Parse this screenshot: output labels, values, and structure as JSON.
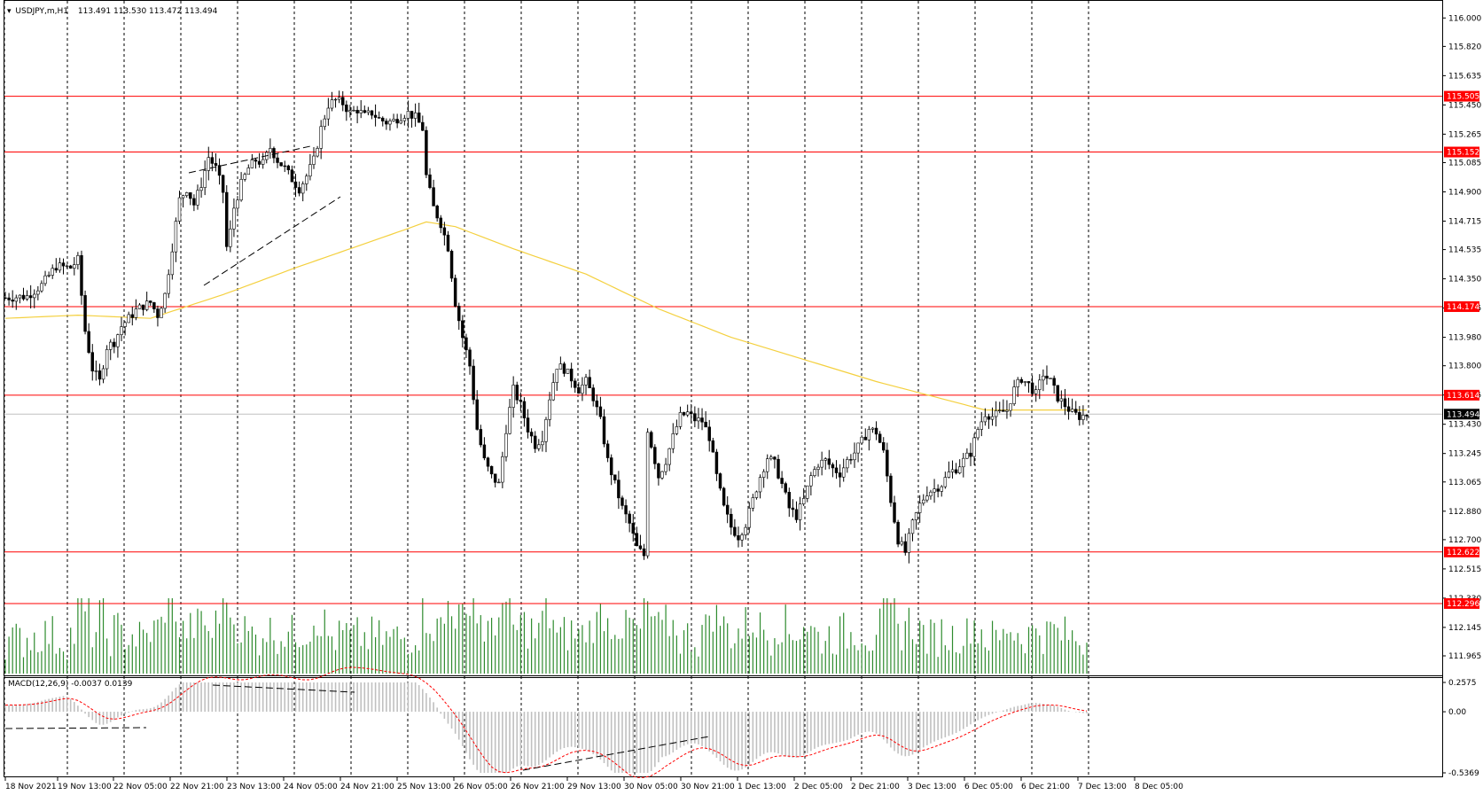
{
  "header": {
    "symbol_label": "USDJPY,m,H1",
    "ohlc": "113.491 113.530 113.472 113.494"
  },
  "macd": {
    "label": "MACD(12,26,9) -0.0037 0.0139",
    "scale": [
      "0.2575",
      "0.00",
      "-0.5369"
    ]
  },
  "colors": {
    "level_line": "#ff0000",
    "ma_line": "#ffd700",
    "volume": "#2e8b2e",
    "candle": "#000000",
    "macd_hist": "#c0c0c0",
    "macd_signal": "#ff0000",
    "current_price_bg": "#000000"
  },
  "chart_data": {
    "type": "candlestick",
    "timeframe": "H1",
    "ylim": [
      111.965,
      116.08
    ],
    "price_axis_ticks": [
      "116.000",
      "115.820",
      "115.635",
      "115.450",
      "115.265",
      "115.085",
      "114.900",
      "114.715",
      "114.535",
      "114.350",
      "114.165",
      "113.980",
      "113.800",
      "113.615",
      "113.430",
      "113.245",
      "113.065",
      "112.880",
      "112.700",
      "112.515",
      "112.330",
      "112.145",
      "111.965"
    ],
    "x_ticks": [
      "18 Nov 2021",
      "19 Nov 13:00",
      "22 Nov 05:00",
      "22 Nov 21:00",
      "23 Nov 13:00",
      "24 Nov 05:00",
      "24 Nov 21:00",
      "25 Nov 13:00",
      "26 Nov 05:00",
      "26 Nov 21:00",
      "29 Nov 13:00",
      "30 Nov 05:00",
      "30 Nov 21:00",
      "1 Dec 13:00",
      "2 Dec 05:00",
      "2 Dec 21:00",
      "3 Dec 13:00",
      "6 Dec 05:00",
      "6 Dec 21:00",
      "7 Dec 13:00",
      "8 Dec 05:00"
    ],
    "horizontal_levels": [
      {
        "value": 115.505,
        "label": "115.505"
      },
      {
        "value": 115.152,
        "label": "115.152"
      },
      {
        "value": 114.174,
        "label": "114.174"
      },
      {
        "value": 113.614,
        "label": "113.614"
      },
      {
        "value": 112.622,
        "label": "112.622"
      },
      {
        "value": 112.296,
        "label": "112.296"
      }
    ],
    "current_price": {
      "value": 113.494,
      "label": "113.494"
    },
    "price_path": [
      [
        0,
        114.23
      ],
      [
        6,
        114.24
      ],
      [
        10,
        114.31
      ],
      [
        14,
        114.43
      ],
      [
        18,
        114.42
      ],
      [
        20,
        114.47
      ],
      [
        22,
        114.02
      ],
      [
        24,
        113.78
      ],
      [
        26,
        113.7
      ],
      [
        28,
        113.92
      ],
      [
        30,
        113.95
      ],
      [
        32,
        114.05
      ],
      [
        34,
        114.1
      ],
      [
        36,
        114.15
      ],
      [
        38,
        114.18
      ],
      [
        40,
        114.2
      ],
      [
        42,
        114.12
      ],
      [
        44,
        114.25
      ],
      [
        46,
        114.55
      ],
      [
        48,
        114.85
      ],
      [
        50,
        114.92
      ],
      [
        52,
        114.82
      ],
      [
        54,
        114.95
      ],
      [
        56,
        115.12
      ],
      [
        58,
        115.05
      ],
      [
        60,
        114.9
      ],
      [
        61,
        114.55
      ],
      [
        62,
        114.65
      ],
      [
        63,
        114.8
      ],
      [
        65,
        114.95
      ],
      [
        67,
        115.05
      ],
      [
        69,
        115.1
      ],
      [
        71,
        115.08
      ],
      [
        73,
        115.18
      ],
      [
        75,
        115.1
      ],
      [
        77,
        115.05
      ],
      [
        79,
        114.98
      ],
      [
        81,
        114.92
      ],
      [
        83,
        115.0
      ],
      [
        85,
        115.1
      ],
      [
        87,
        115.3
      ],
      [
        89,
        115.45
      ],
      [
        91,
        115.48
      ],
      [
        93,
        115.46
      ],
      [
        95,
        115.4
      ],
      [
        97,
        115.42
      ],
      [
        99,
        115.38
      ],
      [
        101,
        115.4
      ],
      [
        103,
        115.36
      ],
      [
        105,
        115.34
      ],
      [
        107,
        115.35
      ],
      [
        109,
        115.38
      ],
      [
        111,
        115.4
      ],
      [
        113,
        115.37
      ],
      [
        115,
        115.3
      ],
      [
        116,
        115.0
      ],
      [
        118,
        114.8
      ],
      [
        120,
        114.7
      ],
      [
        122,
        114.55
      ],
      [
        124,
        114.2
      ],
      [
        126,
        113.98
      ],
      [
        128,
        113.8
      ],
      [
        130,
        113.4
      ],
      [
        132,
        113.2
      ],
      [
        134,
        113.1
      ],
      [
        136,
        113.05
      ],
      [
        138,
        113.4
      ],
      [
        140,
        113.65
      ],
      [
        142,
        113.55
      ],
      [
        144,
        113.4
      ],
      [
        146,
        113.3
      ],
      [
        148,
        113.35
      ],
      [
        150,
        113.6
      ],
      [
        152,
        113.8
      ],
      [
        154,
        113.78
      ],
      [
        156,
        113.72
      ],
      [
        158,
        113.65
      ],
      [
        160,
        113.7
      ],
      [
        162,
        113.6
      ],
      [
        164,
        113.45
      ],
      [
        166,
        113.2
      ],
      [
        168,
        113.05
      ],
      [
        170,
        112.9
      ],
      [
        172,
        112.8
      ],
      [
        174,
        112.65
      ],
      [
        176,
        112.6
      ],
      [
        177,
        113.4
      ],
      [
        178,
        113.3
      ],
      [
        180,
        113.1
      ],
      [
        182,
        113.2
      ],
      [
        184,
        113.35
      ],
      [
        186,
        113.48
      ],
      [
        188,
        113.5
      ],
      [
        190,
        113.46
      ],
      [
        192,
        113.45
      ],
      [
        194,
        113.35
      ],
      [
        196,
        113.1
      ],
      [
        198,
        112.9
      ],
      [
        200,
        112.78
      ],
      [
        202,
        112.72
      ],
      [
        204,
        112.8
      ],
      [
        206,
        112.95
      ],
      [
        208,
        113.1
      ],
      [
        210,
        113.22
      ],
      [
        212,
        113.18
      ],
      [
        214,
        113.05
      ],
      [
        216,
        112.9
      ],
      [
        218,
        112.85
      ],
      [
        220,
        112.95
      ],
      [
        222,
        113.1
      ],
      [
        224,
        113.18
      ],
      [
        226,
        113.2
      ],
      [
        228,
        113.15
      ],
      [
        230,
        113.12
      ],
      [
        232,
        113.2
      ],
      [
        234,
        113.25
      ],
      [
        236,
        113.32
      ],
      [
        238,
        113.4
      ],
      [
        240,
        113.38
      ],
      [
        242,
        113.25
      ],
      [
        244,
        112.95
      ],
      [
        246,
        112.7
      ],
      [
        248,
        112.62
      ],
      [
        250,
        112.8
      ],
      [
        252,
        112.92
      ],
      [
        254,
        113.0
      ],
      [
        256,
        113.02
      ],
      [
        258,
        113.05
      ],
      [
        260,
        113.12
      ],
      [
        262,
        113.15
      ],
      [
        264,
        113.2
      ],
      [
        266,
        113.25
      ],
      [
        268,
        113.4
      ],
      [
        270,
        113.5
      ],
      [
        272,
        113.48
      ],
      [
        274,
        113.5
      ],
      [
        276,
        113.52
      ],
      [
        278,
        113.65
      ],
      [
        280,
        113.72
      ],
      [
        282,
        113.68
      ],
      [
        284,
        113.62
      ],
      [
        286,
        113.75
      ],
      [
        288,
        113.7
      ],
      [
        290,
        113.6
      ],
      [
        292,
        113.55
      ],
      [
        294,
        113.5
      ],
      [
        296,
        113.48
      ],
      [
        298,
        113.49
      ]
    ],
    "ma_path": [
      [
        0,
        114.1
      ],
      [
        20,
        114.12
      ],
      [
        40,
        114.1
      ],
      [
        60,
        114.25
      ],
      [
        80,
        114.42
      ],
      [
        100,
        114.58
      ],
      [
        110,
        114.66
      ],
      [
        116,
        114.71
      ],
      [
        124,
        114.68
      ],
      [
        140,
        114.54
      ],
      [
        160,
        114.38
      ],
      [
        180,
        114.16
      ],
      [
        200,
        113.98
      ],
      [
        220,
        113.84
      ],
      [
        240,
        113.7
      ],
      [
        260,
        113.58
      ],
      [
        270,
        113.52
      ],
      [
        285,
        113.52
      ],
      [
        298,
        113.52
      ]
    ],
    "volume": [],
    "annotations": [
      "dashed trend lines (ascending channel on 22-24 Nov)",
      "dashed divergence lines on MACD"
    ]
  }
}
